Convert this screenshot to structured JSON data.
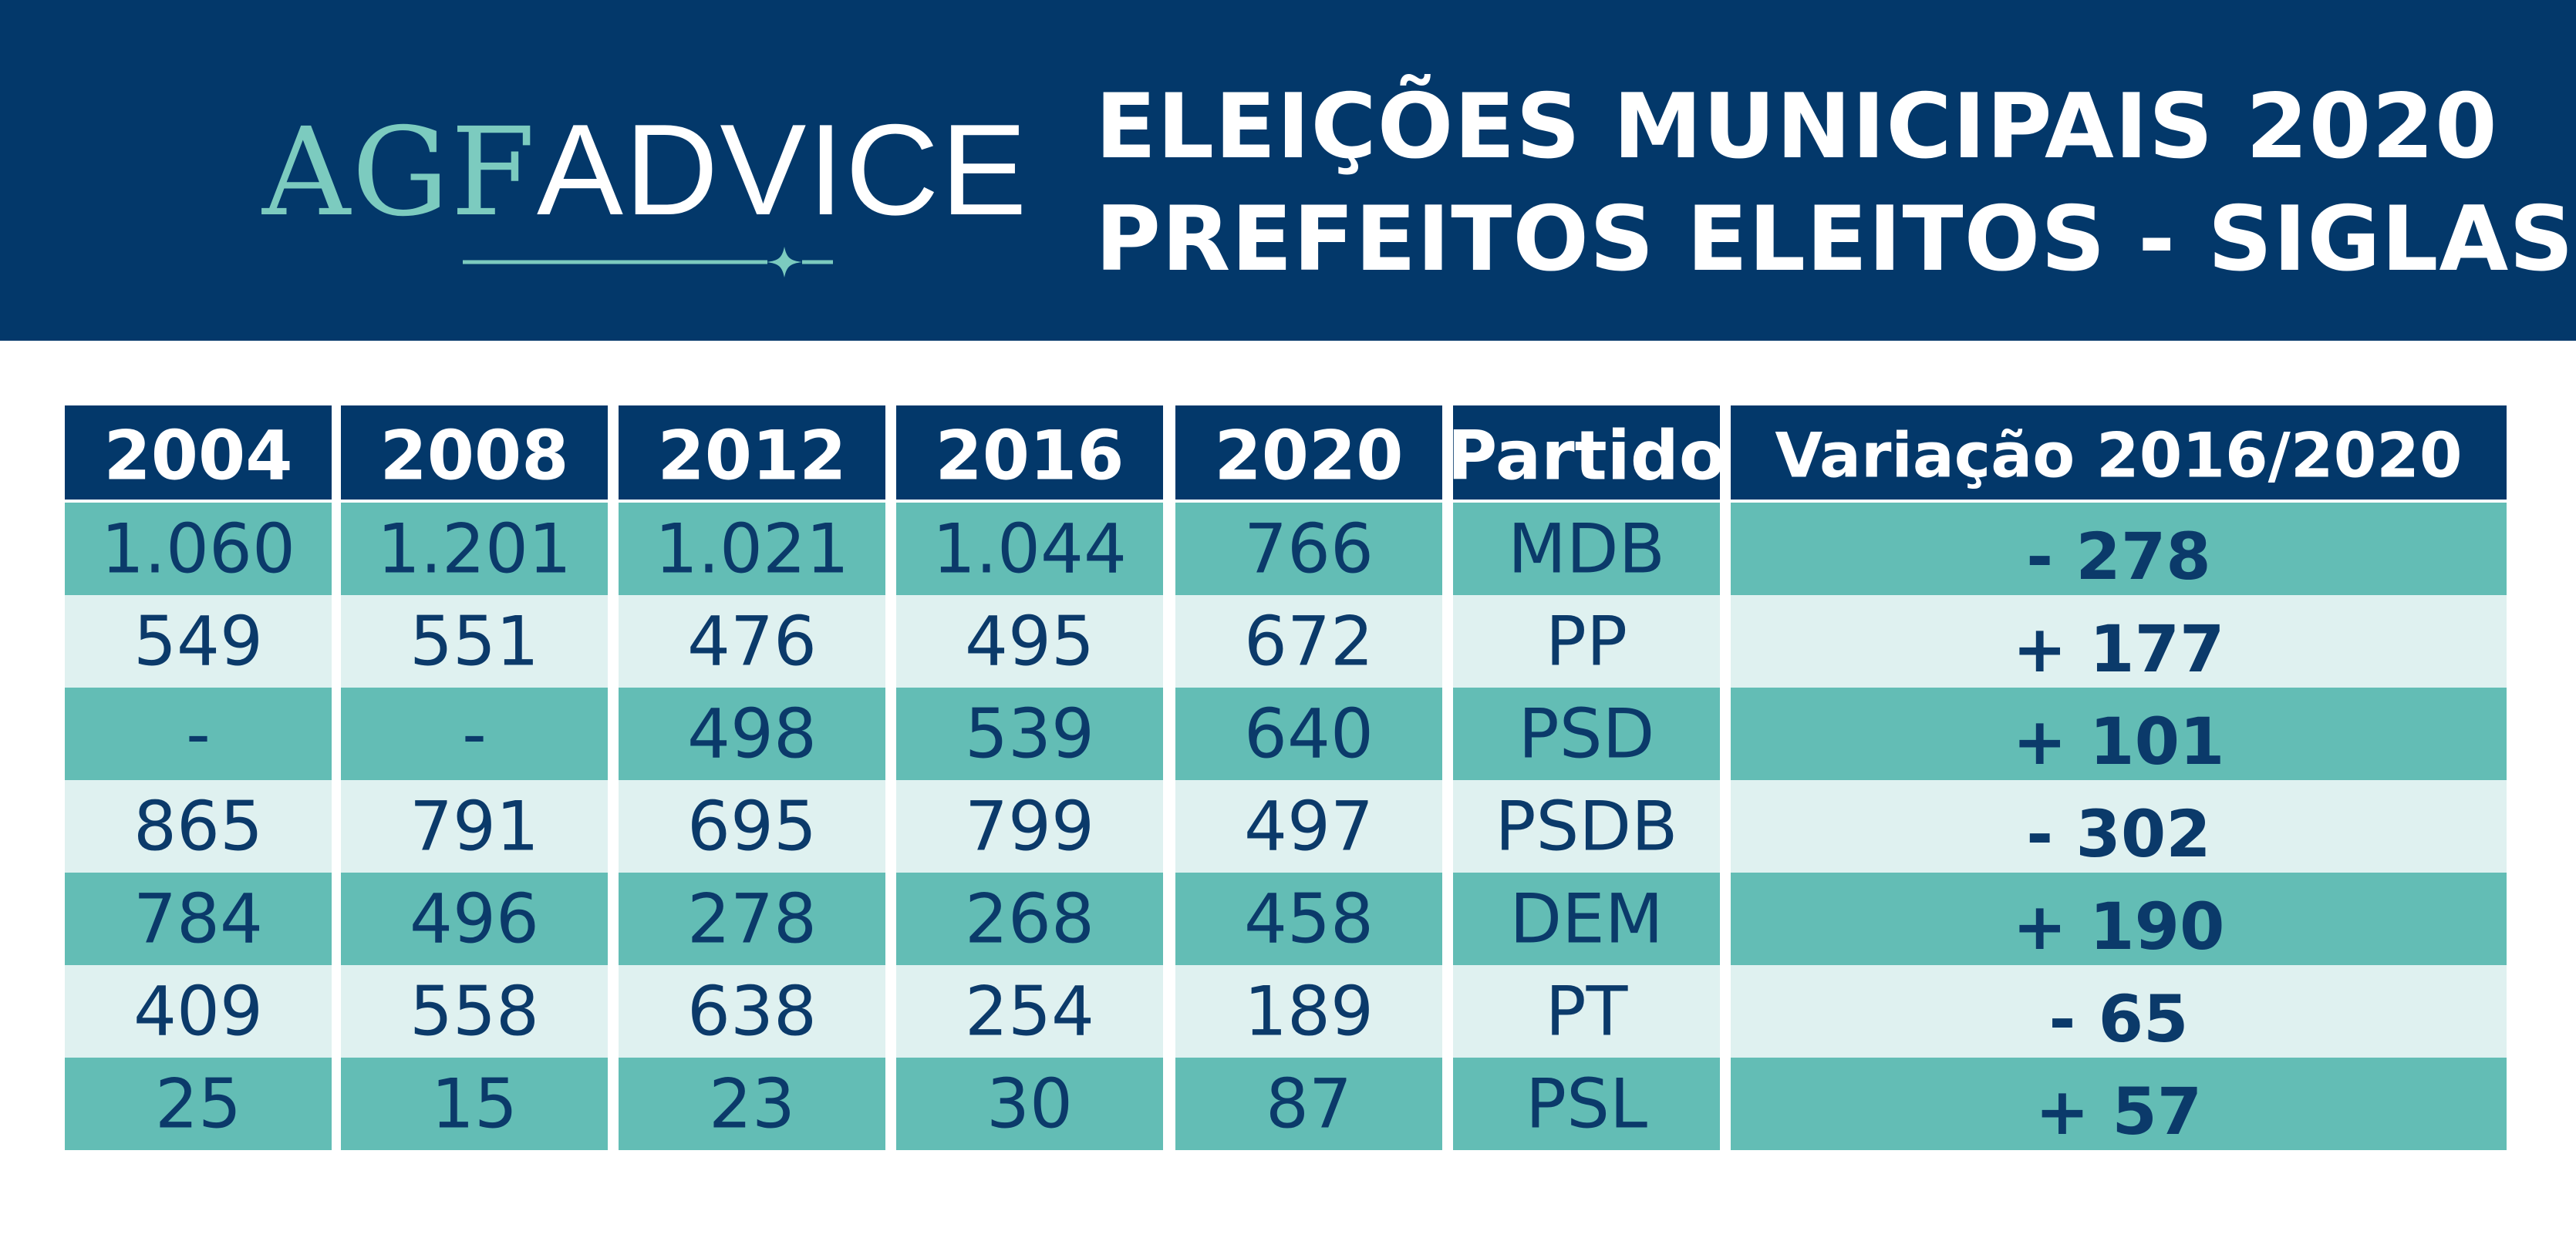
{
  "header": {
    "logo": {
      "part1": "AGF",
      "part2": "ADVICE"
    },
    "title_line1": "ELEIÇÕES MUNICIPAIS 2020",
    "title_line2": "PREFEITOS ELEITOS - SIGLAS"
  },
  "colors": {
    "header_bg": "#03386a",
    "logo_teal": "#7ccbbf",
    "row_dark": "#63bdb5",
    "row_light": "#dff1f0",
    "text_dark": "#0b3a6a"
  },
  "chart_data": {
    "type": "table",
    "columns": [
      "2004",
      "2008",
      "2012",
      "2016",
      "2020",
      "Partido",
      "Variação 2016/2020"
    ],
    "rows": [
      [
        "1.060",
        "1.201",
        "1.021",
        "1.044",
        "766",
        "MDB",
        "- 278"
      ],
      [
        "549",
        "551",
        "476",
        "495",
        "672",
        "PP",
        "+ 177"
      ],
      [
        "-",
        "-",
        "498",
        "539",
        "640",
        "PSD",
        "+ 101"
      ],
      [
        "865",
        "791",
        "695",
        "799",
        "497",
        "PSDB",
        "- 302"
      ],
      [
        "784",
        "496",
        "278",
        "268",
        "458",
        "DEM",
        "+ 190"
      ],
      [
        "409",
        "558",
        "638",
        "254",
        "189",
        "PT",
        "- 65"
      ],
      [
        "25",
        "15",
        "23",
        "30",
        "87",
        "PSL",
        "+ 57"
      ]
    ]
  }
}
